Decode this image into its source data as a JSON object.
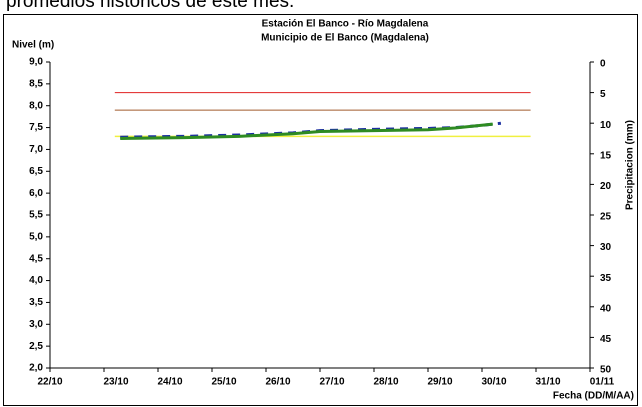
{
  "caption": "promedios históricos de este mes.",
  "chart_data": {
    "type": "line",
    "title": "Estación El Banco - Río Magdalena",
    "subtitle": "Municipio de El Banco (Magdalena)",
    "y_label": "Nivel (m)",
    "y2_label": "Precipitacion (mm)",
    "x_label": "Fecha (DD/M/AA)",
    "xlim": [
      0,
      10
    ],
    "xticks": [
      {
        "value": 0,
        "label": "22/10"
      },
      {
        "value": 1,
        "label": "23/10"
      },
      {
        "value": 2,
        "label": "24/10"
      },
      {
        "value": 3,
        "label": "25/10"
      },
      {
        "value": 4,
        "label": "26/10"
      },
      {
        "value": 5,
        "label": "27/10"
      },
      {
        "value": 6,
        "label": "28/10"
      },
      {
        "value": 7,
        "label": "29/10"
      },
      {
        "value": 8,
        "label": "30/10"
      },
      {
        "value": 9,
        "label": "31/10"
      },
      {
        "value": 10,
        "label": "01/11"
      }
    ],
    "ylim": [
      2,
      9
    ],
    "yticks": [
      {
        "value": 9,
        "label": "9,0"
      },
      {
        "value": 8.5,
        "label": "8,5"
      },
      {
        "value": 8,
        "label": "8,0"
      },
      {
        "value": 7.5,
        "label": "7,5"
      },
      {
        "value": 7,
        "label": "7,0"
      },
      {
        "value": 6.5,
        "label": "6,5"
      },
      {
        "value": 6,
        "label": "6,0"
      },
      {
        "value": 5.5,
        "label": "5,5"
      },
      {
        "value": 5,
        "label": "5,0"
      },
      {
        "value": 4.5,
        "label": "4,5"
      },
      {
        "value": 4,
        "label": "4,0"
      },
      {
        "value": 3.5,
        "label": "3,5"
      },
      {
        "value": 3,
        "label": "3,0"
      },
      {
        "value": 2.5,
        "label": "2,5"
      },
      {
        "value": 2,
        "label": "2,0"
      }
    ],
    "y2lim": [
      0,
      50
    ],
    "y2ticks": [
      0,
      5,
      10,
      15,
      20,
      25,
      30,
      35,
      40,
      45,
      50
    ],
    "series": [
      {
        "color": "#e02020",
        "width": 1,
        "x": [
          1.2,
          8.9
        ],
        "values": [
          8.3,
          8.3
        ]
      },
      {
        "color": "#a05a2c",
        "width": 1,
        "x": [
          1.2,
          8.9
        ],
        "values": [
          7.9,
          7.9
        ]
      },
      {
        "color": "#f0f040",
        "width": 1.5,
        "x": [
          1.2,
          8.9
        ],
        "values": [
          7.3,
          7.3
        ]
      },
      {
        "color": "#1c2fa0",
        "width": 3,
        "dash": true,
        "x": [
          1.3,
          2.5,
          3.5,
          4.5,
          5.0,
          6.0,
          7.0,
          7.5,
          8.0,
          8.35
        ],
        "values": [
          7.28,
          7.3,
          7.33,
          7.38,
          7.43,
          7.46,
          7.48,
          7.5,
          7.55,
          7.6
        ]
      },
      {
        "color": "#2e8b22",
        "width": 3,
        "x": [
          1.3,
          2.5,
          3.5,
          4.5,
          5.0,
          6.0,
          7.0,
          7.5,
          8.2
        ],
        "values": [
          7.25,
          7.27,
          7.3,
          7.36,
          7.41,
          7.43,
          7.45,
          7.49,
          7.58
        ]
      }
    ]
  }
}
